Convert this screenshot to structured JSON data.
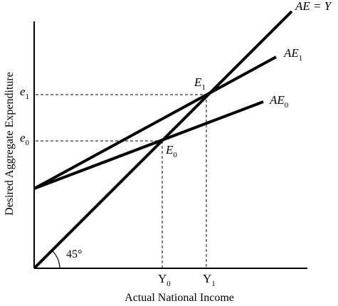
{
  "diagram": {
    "ylabel": "Desired Aggregate Expenditure",
    "xlabel": "Actual National Income",
    "angle_label": "45°",
    "lines": {
      "ae_eq_y": {
        "text": "AE = Y"
      },
      "ae1": {
        "base": "AE",
        "sub": "1"
      },
      "ae0": {
        "base": "AE",
        "sub": "0"
      }
    },
    "points": {
      "e1": {
        "base": "E",
        "sub": "1"
      },
      "e0": {
        "base": "E",
        "sub": "0"
      }
    },
    "y_ticks": [
      {
        "base": "e",
        "sub": "1"
      },
      {
        "base": "e",
        "sub": "0"
      }
    ],
    "x_ticks": [
      {
        "base": "Y",
        "sub": "0"
      },
      {
        "base": "Y",
        "sub": "1"
      }
    ]
  }
}
